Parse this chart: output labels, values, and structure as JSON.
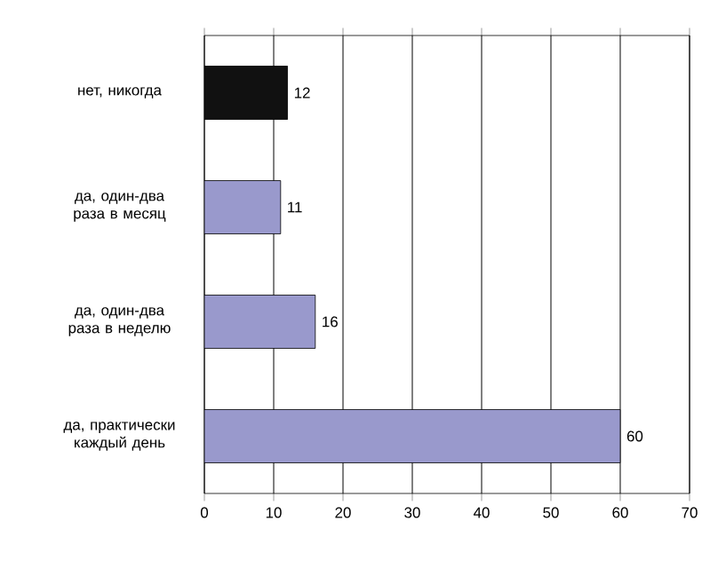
{
  "chart_data": {
    "type": "bar",
    "orientation": "horizontal",
    "categories": [
      "нет, никогда",
      "да, один-два раза в месяц",
      "да, один-два раза в неделю",
      "да, практически каждый день"
    ],
    "values": [
      12,
      11,
      16,
      60
    ],
    "colors": [
      "#111111",
      "#9999cc",
      "#9999cc",
      "#9999cc"
    ],
    "xlim": [
      0,
      70
    ],
    "xticks": [
      0,
      10,
      20,
      30,
      40,
      50,
      60,
      70
    ],
    "grid": "x",
    "data_labels": true
  }
}
